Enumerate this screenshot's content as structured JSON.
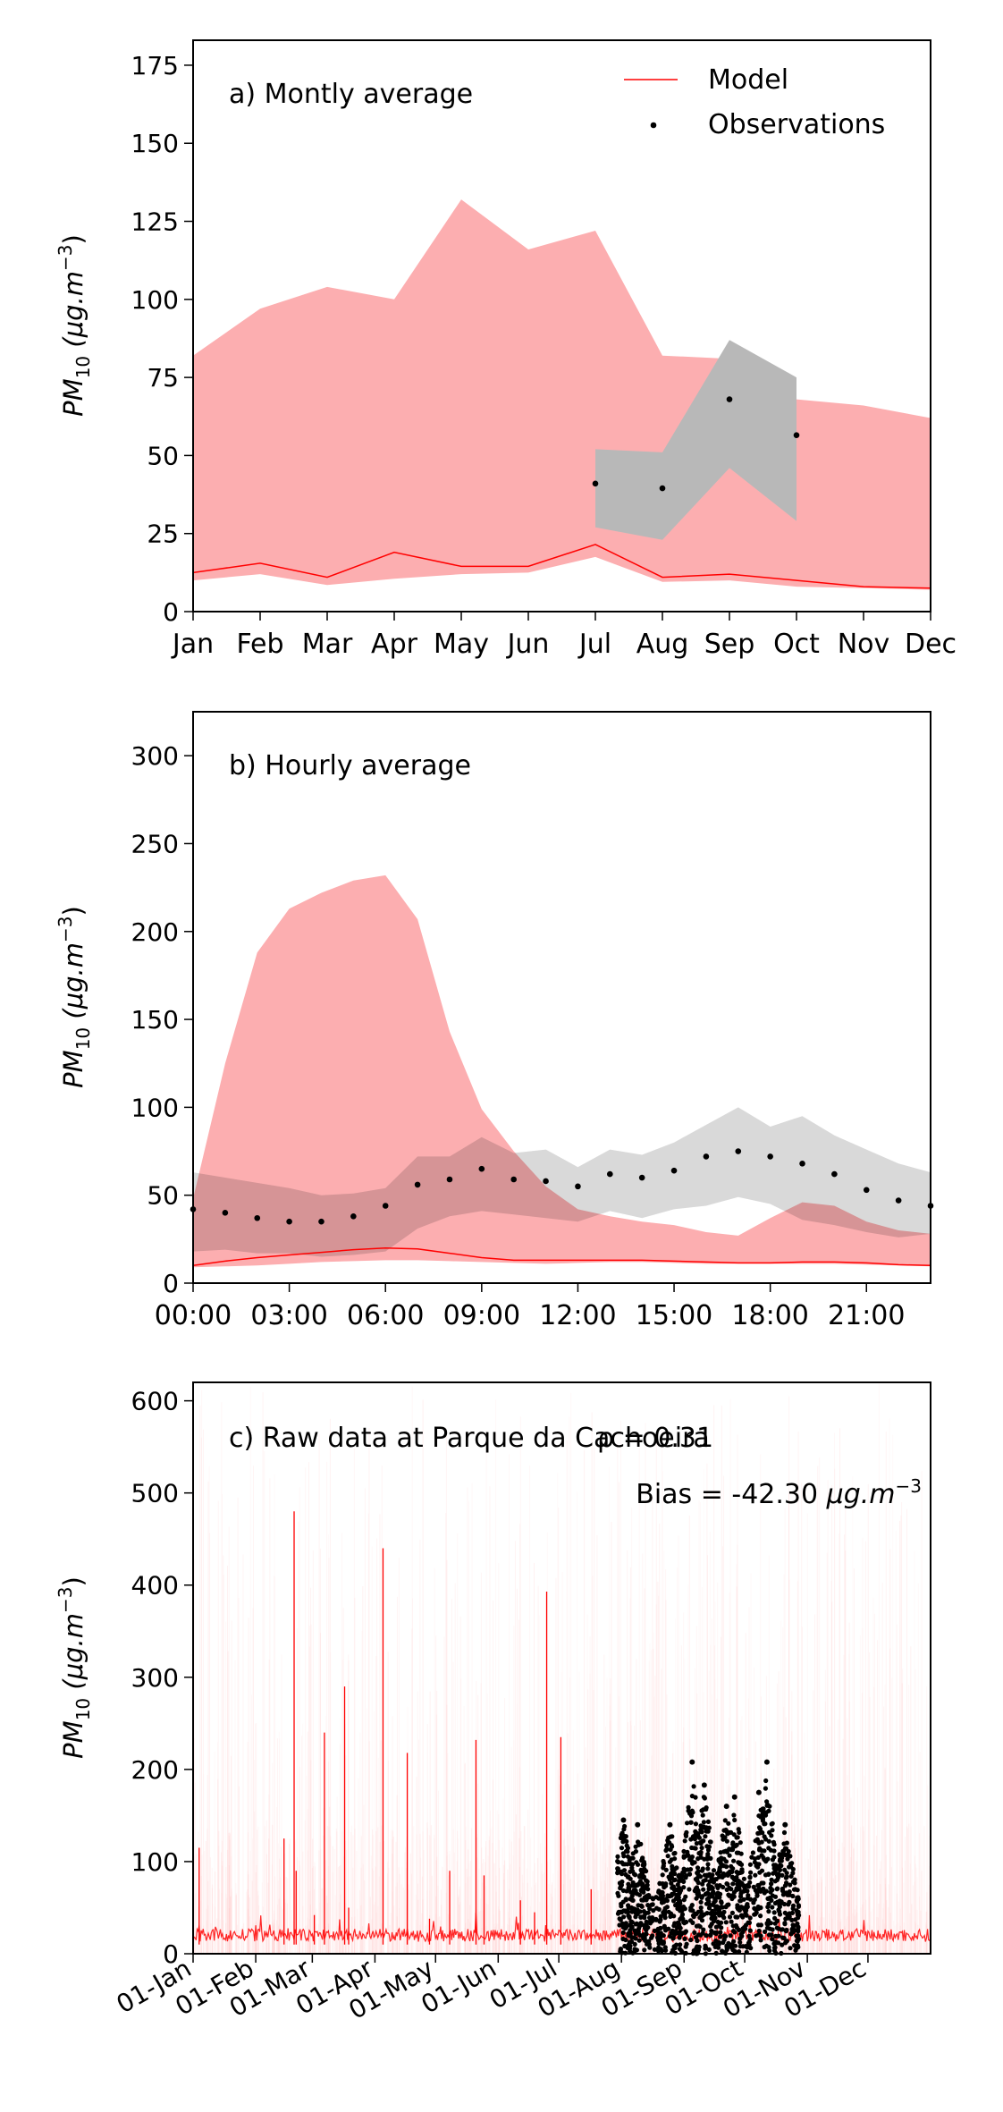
{
  "colors": {
    "model_line": "#ff0000",
    "model_band": "#fcaeb0",
    "obs_band": "#d9d9d9",
    "obs_point": "#000000"
  },
  "chart_data": [
    {
      "id": "monthly",
      "type": "line",
      "title": "a) Montly average",
      "ylabel": "PM",
      "ylabel_sub": "10",
      "ylabel_unit": "(μg.m",
      "ylabel_exp": "−3",
      "ylabel_close": ")",
      "ylim": [
        0,
        183
      ],
      "yticks": [
        0,
        25,
        50,
        75,
        100,
        125,
        150,
        175
      ],
      "categories": [
        "Jan",
        "Feb",
        "Mar",
        "Apr",
        "May",
        "Jun",
        "Jul",
        "Aug",
        "Sep",
        "Oct",
        "Nov",
        "Dec"
      ],
      "legend_position": "top-right",
      "legend": {
        "model": "Model",
        "obs": "Observations"
      },
      "series": [
        {
          "name": "Model",
          "kind": "line",
          "values": [
            12.5,
            15.5,
            11,
            19,
            14.5,
            14.5,
            21.5,
            11,
            12,
            10,
            8,
            7.5
          ]
        },
        {
          "kind": "band-upper",
          "values": [
            82,
            97,
            104,
            100,
            132,
            116,
            122,
            82,
            81,
            68,
            66,
            62
          ]
        },
        {
          "kind": "band-lower",
          "values": [
            10,
            12,
            8.5,
            10.5,
            12,
            12.5,
            17.5,
            9.5,
            10,
            8,
            7.5,
            7
          ]
        },
        {
          "name": "Observations",
          "kind": "points",
          "x": [
            6,
            7,
            8,
            9
          ],
          "values": [
            41,
            39.5,
            68,
            56.5
          ]
        },
        {
          "kind": "obs-band-upper",
          "x": [
            6,
            7,
            8,
            9
          ],
          "values": [
            52,
            51,
            87,
            75
          ]
        },
        {
          "kind": "obs-band-lower",
          "x": [
            6,
            7,
            8,
            9
          ],
          "values": [
            27,
            23,
            46,
            29
          ]
        }
      ]
    },
    {
      "id": "hourly",
      "type": "line",
      "title": "b) Hourly average",
      "ylabel": "PM",
      "ylabel_sub": "10",
      "ylabel_unit": "(μg.m",
      "ylabel_exp": "−3",
      "ylabel_close": ")",
      "ylim": [
        0,
        325
      ],
      "yticks": [
        0,
        50,
        100,
        150,
        200,
        250,
        300
      ],
      "xlim": [
        0,
        23
      ],
      "xticks": [
        0,
        3,
        6,
        9,
        12,
        15,
        18,
        21
      ],
      "xticklabels": [
        "00:00",
        "03:00",
        "06:00",
        "09:00",
        "12:00",
        "15:00",
        "18:00",
        "21:00"
      ],
      "series": [
        {
          "name": "Model",
          "kind": "line",
          "values": [
            10,
            12.5,
            14.5,
            16,
            17.5,
            19,
            20,
            19.5,
            17,
            14.5,
            13,
            13,
            13,
            13,
            13,
            12.5,
            12,
            11.5,
            11.5,
            12,
            12,
            11.5,
            10.5,
            10
          ]
        },
        {
          "kind": "band-upper",
          "values": [
            48,
            125,
            188,
            213,
            222,
            229,
            232,
            207,
            143,
            99,
            75,
            55,
            42,
            38,
            35,
            33,
            29,
            27,
            37,
            46,
            44,
            35,
            30,
            28
          ]
        },
        {
          "kind": "band-lower",
          "values": [
            9,
            9.5,
            10,
            11,
            12,
            12.5,
            13,
            13,
            12.5,
            12,
            11.5,
            11,
            11.5,
            12,
            12,
            11.5,
            11,
            11,
            11,
            11,
            11,
            10.5,
            10,
            9.5
          ]
        },
        {
          "name": "Observations",
          "kind": "points",
          "values": [
            42,
            40,
            37,
            35,
            35,
            38,
            44,
            56,
            59,
            65,
            59,
            58,
            55,
            62,
            60,
            64,
            72,
            75,
            72,
            68,
            62,
            53,
            47,
            44
          ]
        },
        {
          "kind": "obs-band-upper",
          "values": [
            63,
            60,
            57,
            54,
            50,
            51,
            54,
            72,
            72,
            83,
            74,
            76,
            66,
            76,
            73,
            80,
            90,
            100,
            89,
            95,
            84,
            76,
            68,
            63
          ]
        },
        {
          "kind": "obs-band-lower",
          "values": [
            18,
            19,
            17,
            17,
            15,
            16,
            18,
            31,
            38,
            41,
            39,
            37,
            35,
            41,
            37,
            42,
            44,
            49,
            45,
            36,
            33,
            29,
            26,
            28
          ]
        }
      ]
    },
    {
      "id": "raw",
      "type": "line",
      "title": "c) Raw data at Parque da Cachoeira",
      "stat_rho": "ρ = 0.31",
      "stat_bias": "Bias = -42.30 ",
      "stat_bias_unit": "μg.m",
      "stat_bias_exp": "−3",
      "ylabel": "PM",
      "ylabel_sub": "10",
      "ylabel_unit": "(μg.m",
      "ylabel_exp": "−3",
      "ylabel_close": ")",
      "ylim": [
        0,
        620
      ],
      "yticks": [
        0,
        100,
        200,
        300,
        400,
        500,
        600
      ],
      "xlim_days": [
        0,
        365
      ],
      "xticks_days": [
        0,
        31,
        59,
        90,
        120,
        151,
        181,
        212,
        243,
        273,
        304,
        334
      ],
      "xticklabels": [
        "01-Jan",
        "01-Feb",
        "01-Mar",
        "01-Apr",
        "01-May",
        "01-Jun",
        "01-Jul",
        "01-Aug",
        "01-Sep",
        "01-Oct",
        "01-Nov",
        "01-Dec"
      ],
      "series": [
        {
          "name": "Model",
          "kind": "spikes",
          "day": [
            3,
            45,
            50,
            51,
            60,
            65,
            75,
            77,
            94,
            106,
            117,
            127,
            140,
            144,
            162,
            169,
            175,
            182,
            197
          ],
          "values": [
            115,
            125,
            480,
            90,
            42,
            240,
            290,
            50,
            440,
            218,
            38,
            90,
            232,
            85,
            58,
            45,
            393,
            235,
            70
          ]
        },
        {
          "name": "Observations",
          "kind": "points",
          "day_range": [
            210,
            300
          ],
          "peaks": [
            {
              "day": 213,
              "value": 145
            },
            {
              "day": 220,
              "value": 140
            },
            {
              "day": 236,
              "value": 140
            },
            {
              "day": 247,
              "value": 208
            },
            {
              "day": 253,
              "value": 183
            },
            {
              "day": 264,
              "value": 160
            },
            {
              "day": 268,
              "value": 170
            },
            {
              "day": 280,
              "value": 175
            },
            {
              "day": 284,
              "value": 208
            },
            {
              "day": 293,
              "value": 140
            }
          ]
        }
      ]
    }
  ]
}
